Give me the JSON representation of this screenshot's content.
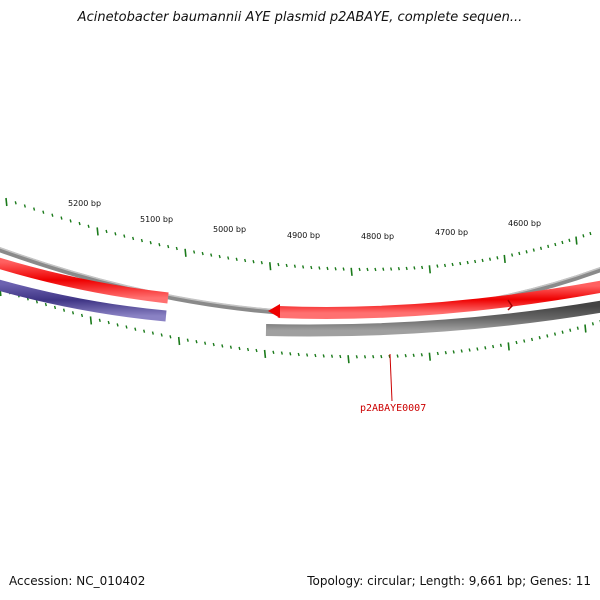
{
  "title": "Acinetobacter baumannii AYE plasmid p2ABAYE, complete sequen...",
  "footer": {
    "accession": "Accession: NC_010402",
    "summary": "Topology: circular; Length: 9,661 bp; Genes: 11"
  },
  "map": {
    "bp_labels": [
      "5200 bp",
      "5100 bp",
      "5000 bp",
      "4900 bp",
      "4800 bp",
      "4700 bp",
      "4600 bp"
    ],
    "gene_label": "p2ABAYE0007",
    "colors": {
      "forward_feature": "#ee0000",
      "reverse_feature_blue": "#4a3f8c",
      "reverse_feature_gray": "#666666",
      "backbone": "#8a8a8a",
      "ticks": "#1a7a1a",
      "gene_label": "#cc0000"
    }
  }
}
